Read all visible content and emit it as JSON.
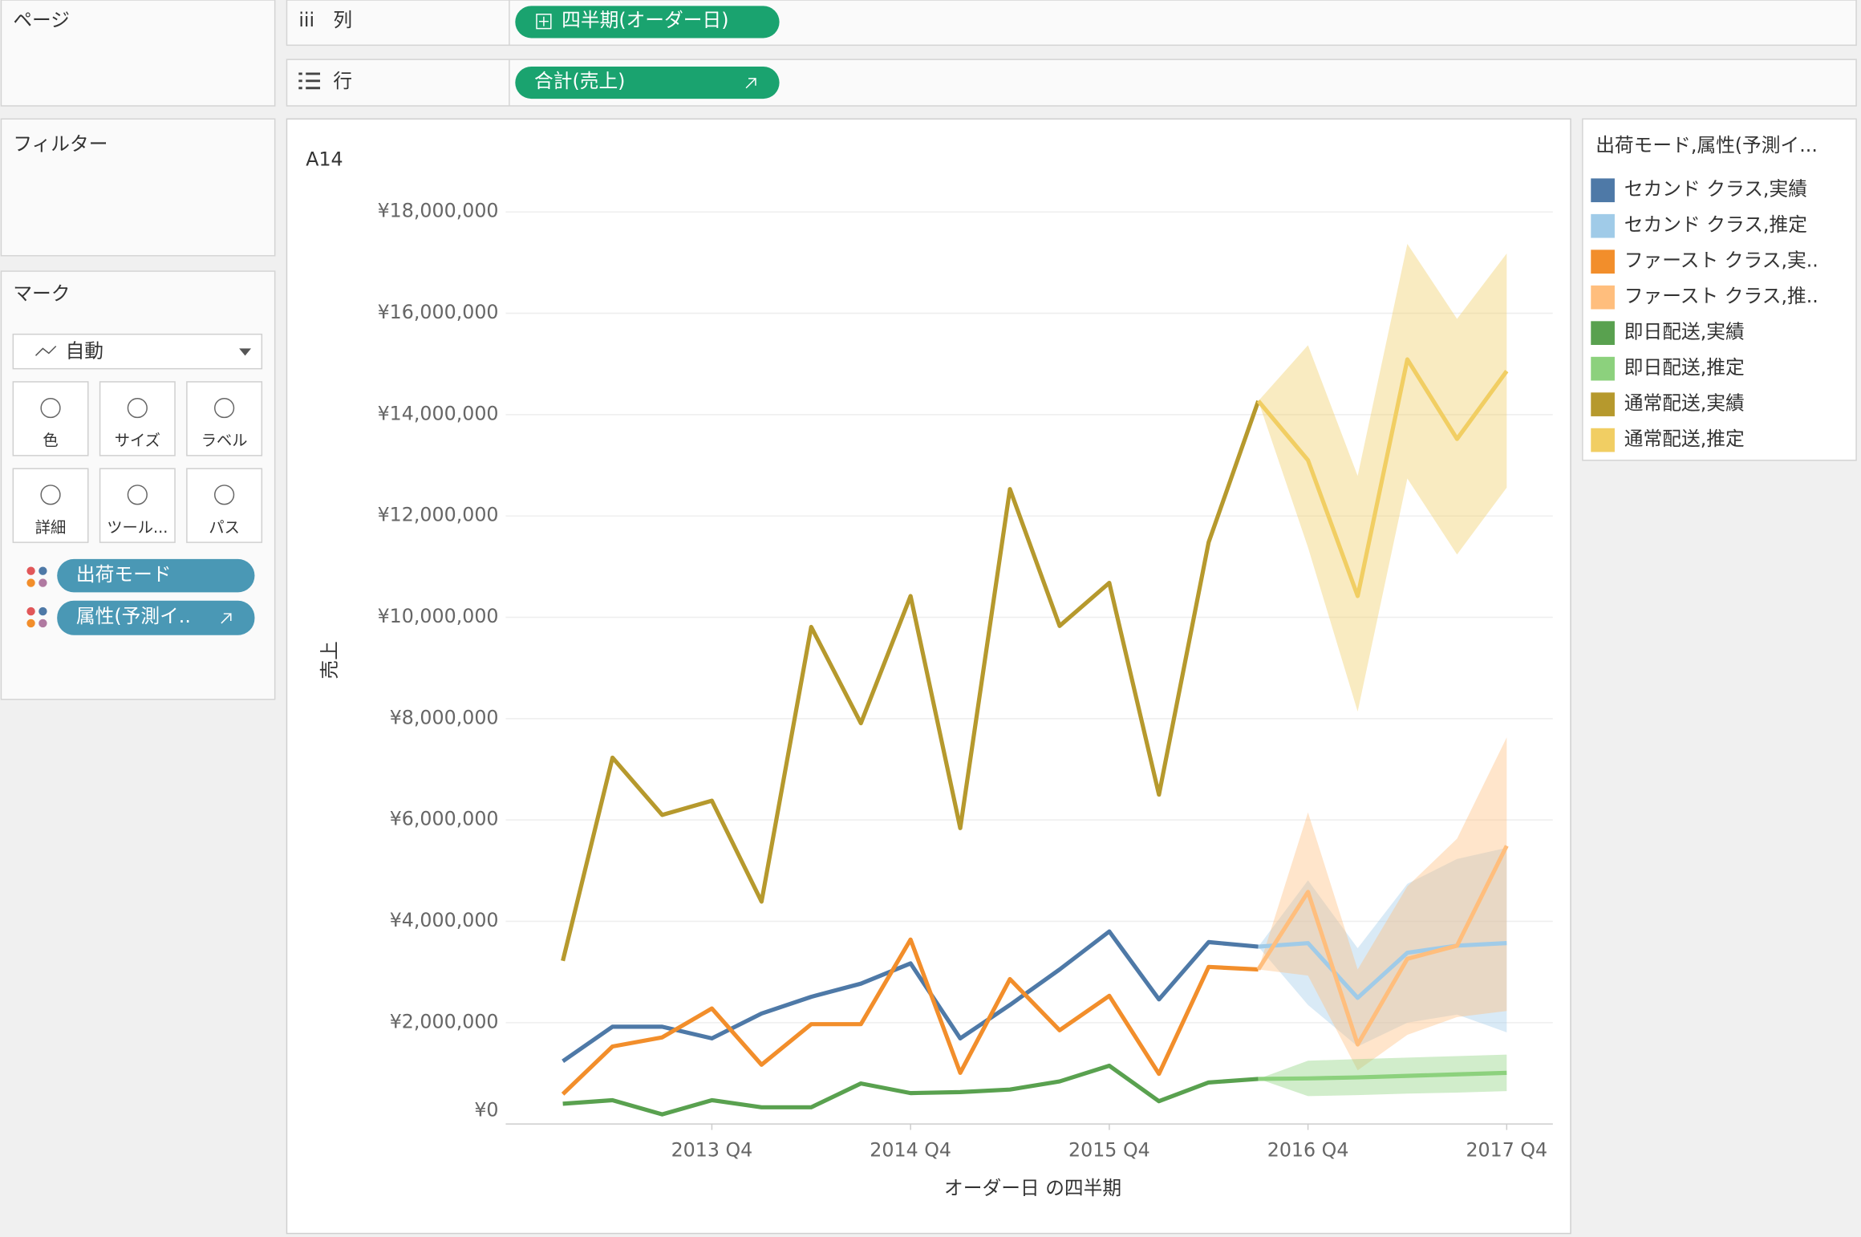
{
  "ui": {
    "pages": "ページ",
    "columns_label": "列",
    "columns_pill": "四半期(オーダー日)",
    "rows_label": "行",
    "rows_pill": "合計(売上)",
    "filters": "フィルター",
    "marks": "マーク",
    "mark_type": "自動",
    "mark_buttons": [
      "色",
      "サイズ",
      "ラベル",
      "詳細",
      "ツール...",
      "パス"
    ],
    "mark_pills": [
      "出荷モード",
      "属性(予測イ.."
    ],
    "legend_title": "出荷モード,属性(予測イ..."
  },
  "chart_data": {
    "type": "line",
    "title": "A14",
    "x_label": "オーダー日 の四半期",
    "y_label": "売上",
    "categories": [
      null,
      null,
      null,
      "2013 Q4",
      null,
      null,
      null,
      "2014 Q4",
      null,
      null,
      null,
      "2015 Q4",
      null,
      null,
      null,
      "2016 Q4",
      null,
      null,
      null,
      "2017 Q4"
    ],
    "ylim": [
      0,
      18000000
    ],
    "yticks": [
      {
        "value": 0,
        "label": "¥0"
      },
      {
        "value": 2000000,
        "label": "¥2,000,000"
      },
      {
        "value": 4000000,
        "label": "¥4,000,000"
      },
      {
        "value": 6000000,
        "label": "¥6,000,000"
      },
      {
        "value": 8000000,
        "label": "¥8,000,000"
      },
      {
        "value": 10000000,
        "label": "¥10,000,000"
      },
      {
        "value": 12000000,
        "label": "¥12,000,000"
      },
      {
        "value": 14000000,
        "label": "¥14,000,000"
      },
      {
        "value": 16000000,
        "label": "¥16,000,000"
      },
      {
        "value": 18000000,
        "label": "¥18,000,000"
      }
    ],
    "grid": true,
    "legend": "right",
    "series": [
      {
        "name": "セカンド クラス,実績",
        "color": "#4e79a7",
        "values": [
          1240000,
          1920000,
          1920000,
          1690000,
          2180000,
          2510000,
          2770000,
          3170000,
          1690000,
          2350000,
          3050000,
          3800000,
          2460000,
          3590000,
          3500000,
          null,
          null,
          null,
          null,
          null
        ]
      },
      {
        "name": "セカンド クラス,推定",
        "color": "#a0cbe8",
        "values": [
          null,
          null,
          null,
          null,
          null,
          null,
          null,
          null,
          null,
          null,
          null,
          null,
          null,
          null,
          3500000,
          3570000,
          2490000,
          3380000,
          3520000,
          3570000
        ],
        "band_high": [
          null,
          null,
          null,
          null,
          null,
          null,
          null,
          null,
          null,
          null,
          null,
          null,
          null,
          null,
          3500000,
          4810000,
          3470000,
          4740000,
          5230000,
          5450000
        ],
        "band_low": [
          null,
          null,
          null,
          null,
          null,
          null,
          null,
          null,
          null,
          null,
          null,
          null,
          null,
          null,
          3500000,
          2350000,
          1530000,
          2000000,
          2160000,
          1810000
        ]
      },
      {
        "name": "ファースト クラス,実..",
        "color": "#f28e2b",
        "values": [
          590000,
          1530000,
          1710000,
          2280000,
          1170000,
          1970000,
          1970000,
          3640000,
          1010000,
          2860000,
          1850000,
          2530000,
          990000,
          3100000,
          3050000,
          null,
          null,
          null,
          null,
          null
        ]
      },
      {
        "name": "ファースト クラス,推..",
        "color": "#ffbe7d",
        "values": [
          null,
          null,
          null,
          null,
          null,
          null,
          null,
          null,
          null,
          null,
          null,
          null,
          null,
          null,
          3050000,
          4580000,
          1570000,
          3260000,
          3520000,
          5490000
        ],
        "band_high": [
          null,
          null,
          null,
          null,
          null,
          null,
          null,
          null,
          null,
          null,
          null,
          null,
          null,
          null,
          3050000,
          6150000,
          3050000,
          4690000,
          5630000,
          7630000
        ],
        "band_low": [
          null,
          null,
          null,
          null,
          null,
          null,
          null,
          null,
          null,
          null,
          null,
          null,
          null,
          null,
          3050000,
          2930000,
          1060000,
          1760000,
          2110000,
          2230000
        ]
      },
      {
        "name": "即日配送,実績",
        "color": "#59a14f",
        "values": [
          400000,
          470000,
          190000,
          470000,
          330000,
          330000,
          800000,
          610000,
          630000,
          680000,
          840000,
          1150000,
          450000,
          820000,
          890000,
          null,
          null,
          null,
          null,
          null
        ]
      },
      {
        "name": "即日配送,推定",
        "color": "#8cd17d",
        "values": [
          null,
          null,
          null,
          null,
          null,
          null,
          null,
          null,
          null,
          null,
          null,
          null,
          null,
          null,
          890000,
          900000,
          920000,
          950000,
          980000,
          1010000
        ],
        "band_high": [
          null,
          null,
          null,
          null,
          null,
          null,
          null,
          null,
          null,
          null,
          null,
          null,
          null,
          null,
          890000,
          1250000,
          1280000,
          1310000,
          1340000,
          1370000
        ],
        "band_low": [
          null,
          null,
          null,
          null,
          null,
          null,
          null,
          null,
          null,
          null,
          null,
          null,
          null,
          null,
          890000,
          550000,
          570000,
          600000,
          620000,
          650000
        ]
      },
      {
        "name": "通常配送,実績",
        "color": "#b6992d",
        "values": [
          3220000,
          7230000,
          6100000,
          6380000,
          4390000,
          9810000,
          7910000,
          10420000,
          5840000,
          12530000,
          9830000,
          10680000,
          6500000,
          11480000,
          14270000,
          null,
          null,
          null,
          null,
          null
        ]
      },
      {
        "name": "通常配送,推定",
        "color": "#f1ce63",
        "values": [
          null,
          null,
          null,
          null,
          null,
          null,
          null,
          null,
          null,
          null,
          null,
          null,
          null,
          null,
          14270000,
          13100000,
          10420000,
          15090000,
          13520000,
          14860000
        ],
        "band_high": [
          null,
          null,
          null,
          null,
          null,
          null,
          null,
          null,
          null,
          null,
          null,
          null,
          null,
          null,
          14270000,
          15370000,
          12790000,
          17370000,
          15890000,
          17180000
        ],
        "band_low": [
          null,
          null,
          null,
          null,
          null,
          null,
          null,
          null,
          null,
          null,
          null,
          null,
          null,
          null,
          14270000,
          11380000,
          8140000,
          12740000,
          11240000,
          12560000
        ]
      }
    ]
  }
}
